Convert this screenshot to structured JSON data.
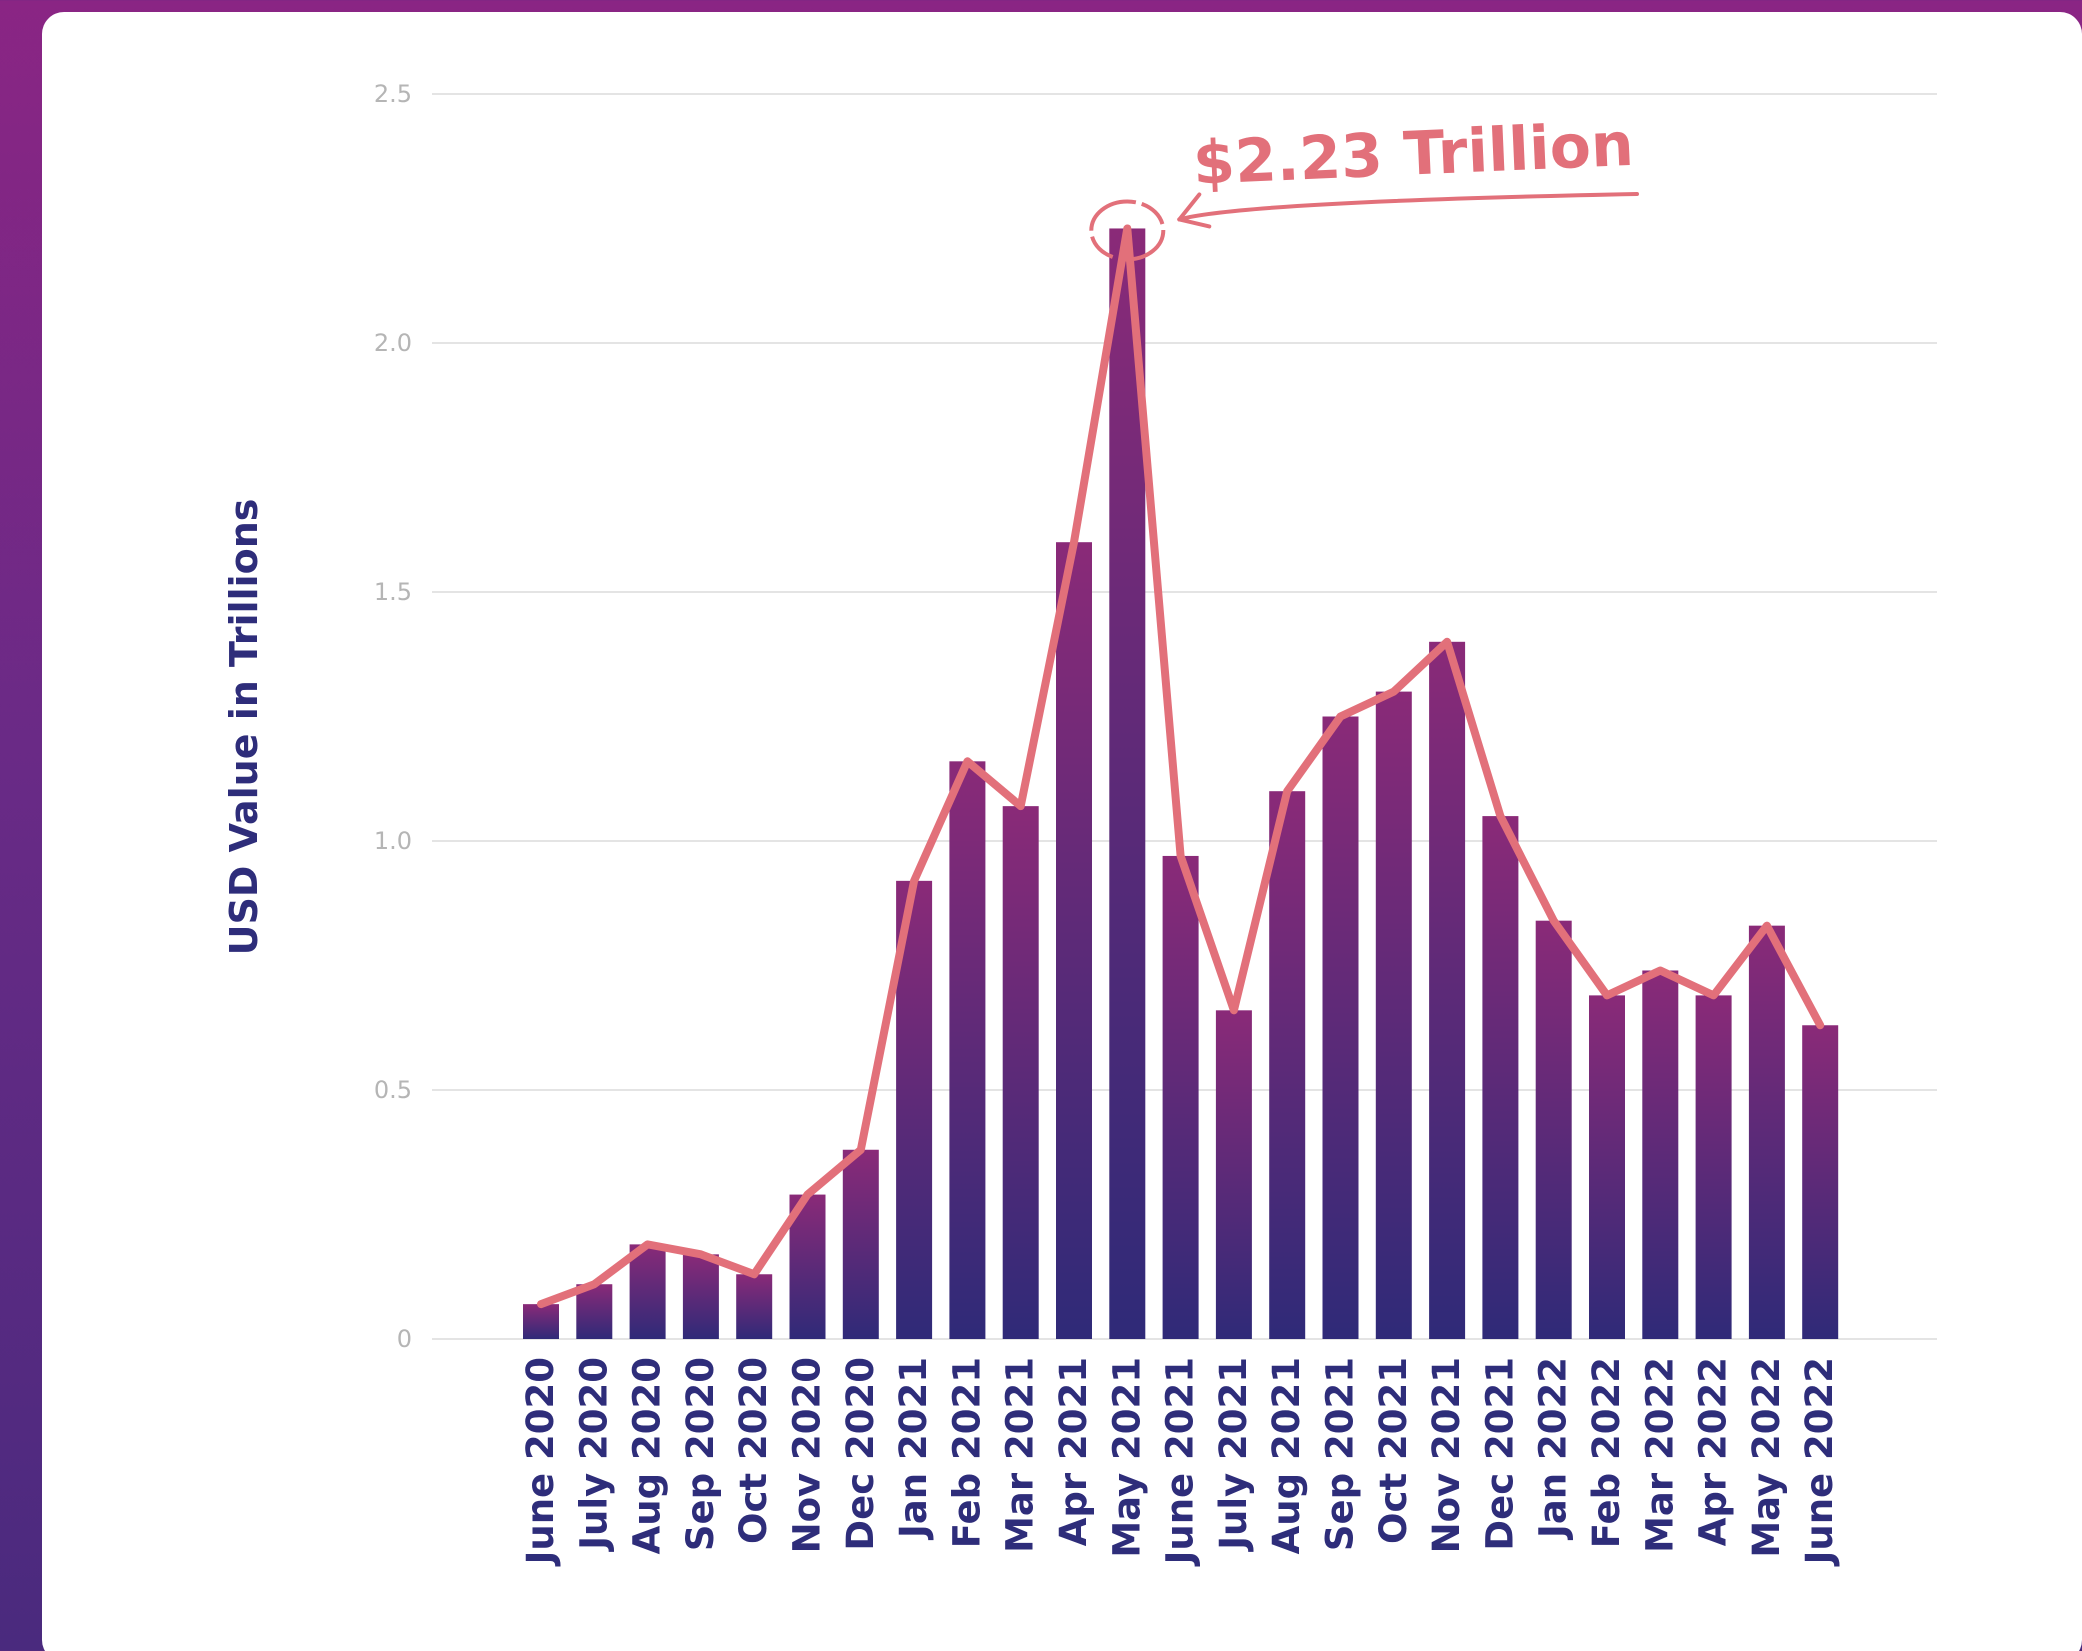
{
  "chart_data": {
    "type": "bar",
    "title": "",
    "xlabel": "",
    "ylabel": "USD Value in Trillions",
    "ylim": [
      0,
      2.5
    ],
    "yticks": [
      "0",
      "0.5",
      "1.0",
      "1.5",
      "2.0",
      "2.5"
    ],
    "ytick_values": [
      0,
      0.5,
      1.0,
      1.5,
      2.0,
      2.5
    ],
    "grid": true,
    "categories": [
      "June 2020",
      "July 2020",
      "Aug 2020",
      "Sep 2020",
      "Oct 2020",
      "Nov 2020",
      "Dec 2020",
      "Jan 2021",
      "Feb 2021",
      "Mar 2021",
      "Apr 2021",
      "May 2021",
      "June 2021",
      "July 2021",
      "Aug 2021",
      "Sep 2021",
      "Oct 2021",
      "Nov 2021",
      "Dec 2021",
      "Jan 2022",
      "Feb 2022",
      "Mar 2022",
      "Apr 2022",
      "May 2022",
      "June 2022"
    ],
    "values": [
      0.07,
      0.11,
      0.19,
      0.17,
      0.13,
      0.29,
      0.38,
      0.92,
      1.16,
      1.07,
      1.6,
      2.23,
      0.97,
      0.66,
      1.1,
      1.25,
      1.3,
      1.4,
      1.05,
      0.84,
      0.69,
      0.74,
      0.69,
      0.83,
      0.63
    ],
    "line_overlay": true,
    "annotation": {
      "text": "$2.23 Trillion",
      "category": "May 2021",
      "value": 2.23
    },
    "colors": {
      "bar_top": "#8a2a78",
      "bar_bottom": "#2f2a78",
      "line": "#e2707a",
      "axis_text": "#2e2d7a",
      "tick_text": "#b5b5b5",
      "grid": "#e4e4e4"
    }
  }
}
